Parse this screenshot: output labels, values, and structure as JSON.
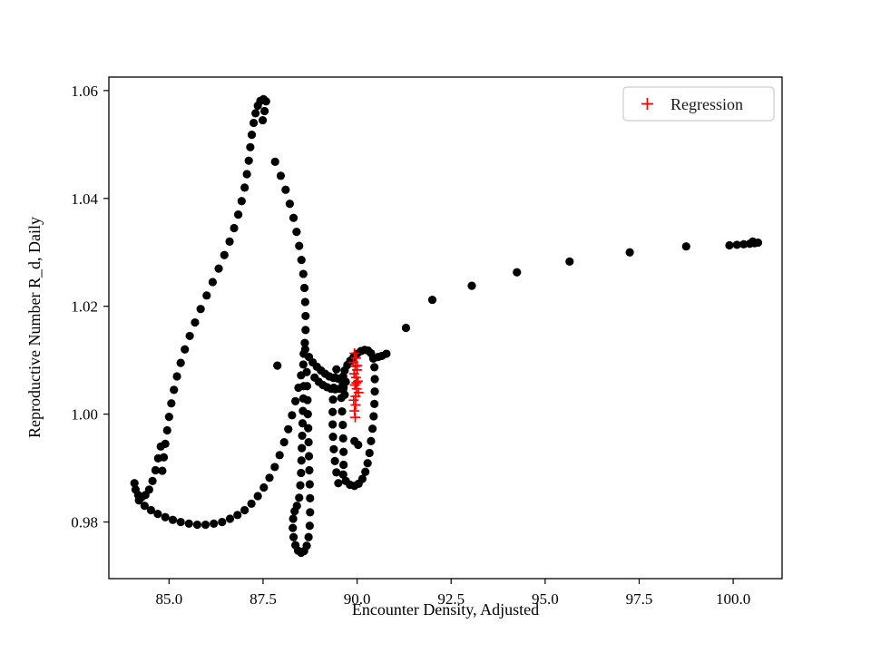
{
  "figure": {
    "background": "#ffffff",
    "frame_color": "#000000"
  },
  "chart_data": {
    "type": "scatter",
    "title": "",
    "xlabel": "Encounter Density, Adjusted",
    "ylabel": "Reproductive Number R_d, Daily",
    "xlim": [
      83.4,
      101.3
    ],
    "ylim": [
      0.9695,
      1.0625
    ],
    "grid": false,
    "xticks": {
      "values": [
        85.0,
        87.5,
        90.0,
        92.5,
        95.0,
        97.5,
        100.0
      ],
      "labels": [
        "85.0",
        "87.5",
        "90.0",
        "92.5",
        "95.0",
        "97.5",
        "100.0"
      ]
    },
    "yticks": {
      "values": [
        0.98,
        1.0,
        1.02,
        1.04,
        1.06
      ],
      "labels": [
        "0.98",
        "1.00",
        "1.02",
        "1.04",
        "1.06"
      ]
    },
    "legend": {
      "label": "Regression",
      "position": "upper right",
      "marker": "plus",
      "marker_color": "#ff0000",
      "box_edge_color": "#cccccc"
    },
    "series": [
      {
        "name": "trajectory",
        "marker": "circle",
        "color": "#000000",
        "size": 4.6,
        "points": [
          [
            84.78,
            0.994
          ],
          [
            84.71,
            0.9918
          ],
          [
            84.64,
            0.9896
          ],
          [
            84.56,
            0.9876
          ],
          [
            84.47,
            0.986
          ],
          [
            84.37,
            0.985
          ],
          [
            84.27,
            0.9846
          ],
          [
            84.18,
            0.985
          ],
          [
            84.11,
            0.986
          ],
          [
            84.08,
            0.9872
          ],
          [
            84.2,
            0.984
          ],
          [
            84.35,
            0.983
          ],
          [
            84.52,
            0.9822
          ],
          [
            84.7,
            0.9815
          ],
          [
            84.9,
            0.9809
          ],
          [
            85.1,
            0.9804
          ],
          [
            85.31,
            0.98
          ],
          [
            85.53,
            0.9797
          ],
          [
            85.75,
            0.9795
          ],
          [
            85.97,
            0.9795
          ],
          [
            86.19,
            0.9797
          ],
          [
            86.41,
            0.98
          ],
          [
            86.62,
            0.9806
          ],
          [
            86.82,
            0.9813
          ],
          [
            87.01,
            0.9822
          ],
          [
            87.19,
            0.9834
          ],
          [
            87.36,
            0.9848
          ],
          [
            87.52,
            0.9864
          ],
          [
            87.67,
            0.9882
          ],
          [
            87.81,
            0.9902
          ],
          [
            87.94,
            0.9924
          ],
          [
            88.06,
            0.9948
          ],
          [
            88.17,
            0.9972
          ],
          [
            88.27,
            0.9998
          ],
          [
            88.36,
            1.0024
          ],
          [
            88.44,
            1.0049
          ],
          [
            88.51,
            1.0072
          ],
          [
            88.57,
            1.0092
          ],
          [
            84.82,
            0.9895
          ],
          [
            84.86,
            0.992
          ],
          [
            84.9,
            0.9945
          ],
          [
            84.95,
            0.997
          ],
          [
            85.0,
            0.9995
          ],
          [
            85.06,
            1.002
          ],
          [
            85.13,
            1.0045
          ],
          [
            85.21,
            1.007
          ],
          [
            85.31,
            1.0095
          ],
          [
            85.42,
            1.012
          ],
          [
            85.55,
            1.0145
          ],
          [
            85.69,
            1.017
          ],
          [
            85.84,
            1.0195
          ],
          [
            86.0,
            1.022
          ],
          [
            86.16,
            1.0245
          ],
          [
            86.32,
            1.027
          ],
          [
            86.47,
            1.0295
          ],
          [
            86.61,
            1.032
          ],
          [
            86.73,
            1.0345
          ],
          [
            86.84,
            1.037
          ],
          [
            86.93,
            1.0395
          ],
          [
            87.01,
            1.042
          ],
          [
            87.07,
            1.0445
          ],
          [
            87.12,
            1.047
          ],
          [
            87.16,
            1.0495
          ],
          [
            87.2,
            1.0518
          ],
          [
            87.25,
            1.054
          ],
          [
            87.3,
            1.0558
          ],
          [
            87.36,
            1.0572
          ],
          [
            87.43,
            1.0581
          ],
          [
            87.51,
            1.0584
          ],
          [
            87.58,
            1.058
          ],
          [
            87.54,
            1.0562
          ],
          [
            87.49,
            1.0545
          ],
          [
            87.82,
            1.0468
          ],
          [
            87.97,
            1.0442
          ],
          [
            88.1,
            1.0416
          ],
          [
            88.21,
            1.039
          ],
          [
            88.31,
            1.0364
          ],
          [
            88.39,
            1.0338
          ],
          [
            88.46,
            1.0312
          ],
          [
            88.52,
            1.0286
          ],
          [
            88.57,
            1.026
          ],
          [
            88.6,
            1.0234
          ],
          [
            88.62,
            1.0208
          ],
          [
            88.63,
            1.0182
          ],
          [
            88.63,
            1.0156
          ],
          [
            88.61,
            1.0132
          ],
          [
            88.58,
            1.0112
          ],
          [
            88.66,
            1.0078
          ],
          [
            88.67,
            1.0052
          ],
          [
            88.68,
            1.0026
          ],
          [
            88.69,
            1.0
          ],
          [
            88.7,
            0.9974
          ],
          [
            88.71,
            0.9948
          ],
          [
            88.72,
            0.9922
          ],
          [
            88.73,
            0.9896
          ],
          [
            88.74,
            0.987
          ],
          [
            88.75,
            0.9844
          ],
          [
            88.75,
            0.9818
          ],
          [
            88.74,
            0.9793
          ],
          [
            88.71,
            0.9772
          ],
          [
            88.66,
            0.9756
          ],
          [
            88.59,
            0.9746
          ],
          [
            88.51,
            0.9743
          ],
          [
            88.43,
            0.9747
          ],
          [
            88.36,
            0.9757
          ],
          [
            88.31,
            0.9772
          ],
          [
            88.29,
            0.9789
          ],
          [
            88.3,
            0.9806
          ],
          [
            88.34,
            0.982
          ],
          [
            88.4,
            0.983
          ],
          [
            88.46,
            0.9845
          ],
          [
            88.49,
            0.9868
          ],
          [
            88.51,
            0.9891
          ],
          [
            88.52,
            0.9914
          ],
          [
            88.53,
            0.9937
          ],
          [
            88.54,
            0.996
          ],
          [
            88.55,
            0.9983
          ],
          [
            88.56,
            1.0006
          ],
          [
            88.57,
            1.0029
          ],
          [
            88.58,
            1.0052
          ],
          [
            89.5,
            0.9872
          ],
          [
            89.45,
            0.9892
          ],
          [
            89.41,
            0.9913
          ],
          [
            89.38,
            0.9935
          ],
          [
            89.36,
            0.9958
          ],
          [
            89.35,
            0.9981
          ],
          [
            89.35,
            1.0004
          ],
          [
            89.36,
            1.0027
          ],
          [
            89.38,
            1.0049
          ],
          [
            89.41,
            1.0068
          ],
          [
            89.45,
            1.0083
          ],
          [
            88.72,
            1.0106
          ],
          [
            88.82,
            1.0096
          ],
          [
            88.93,
            1.0088
          ],
          [
            89.04,
            1.0081
          ],
          [
            89.15,
            1.0075
          ],
          [
            89.26,
            1.007
          ],
          [
            89.37,
            1.0067
          ],
          [
            89.48,
            1.0066
          ],
          [
            89.59,
            1.0066
          ],
          [
            88.87,
            1.0068
          ],
          [
            88.98,
            1.006
          ],
          [
            89.09,
            1.0054
          ],
          [
            89.2,
            1.005
          ],
          [
            89.31,
            1.0047
          ],
          [
            89.42,
            1.0046
          ],
          [
            89.53,
            1.0047
          ],
          [
            89.64,
            1.005
          ],
          [
            89.7,
            1.006
          ],
          [
            89.58,
            1.003
          ],
          [
            89.6,
            1.0005
          ],
          [
            89.62,
            0.998
          ],
          [
            89.63,
            0.9955
          ],
          [
            89.64,
            0.993
          ],
          [
            89.64,
            0.9906
          ],
          [
            89.63,
            0.9888
          ],
          [
            89.7,
            0.9876
          ],
          [
            89.81,
            0.9869
          ],
          [
            89.93,
            0.9867
          ],
          [
            90.04,
            0.9871
          ],
          [
            90.14,
            0.988
          ],
          [
            90.22,
            0.9893
          ],
          [
            90.28,
            0.9909
          ],
          [
            90.33,
            0.9928
          ],
          [
            90.37,
            0.995
          ],
          [
            90.41,
            0.9973
          ],
          [
            90.44,
            0.9996
          ],
          [
            90.46,
            1.0019
          ],
          [
            90.47,
            1.0042
          ],
          [
            90.47,
            1.0065
          ],
          [
            90.46,
            1.0087
          ],
          [
            90.43,
            1.0103
          ],
          [
            90.37,
            1.0113
          ],
          [
            90.29,
            1.0118
          ],
          [
            90.2,
            1.0119
          ],
          [
            90.1,
            1.0117
          ],
          [
            90.0,
            1.0112
          ],
          [
            89.91,
            1.0106
          ],
          [
            89.82,
            1.0099
          ],
          [
            89.74,
            1.0091
          ],
          [
            89.67,
            1.0081
          ],
          [
            89.63,
            1.007
          ],
          [
            89.62,
            1.0058
          ],
          [
            89.63,
            1.0046
          ],
          [
            89.67,
            1.0036
          ],
          [
            87.88,
            1.009
          ],
          [
            89.93,
            0.995
          ],
          [
            90.03,
            0.9943
          ],
          [
            88.62,
            1.012
          ],
          [
            90.56,
            1.0106
          ],
          [
            90.66,
            1.0108
          ],
          [
            90.78,
            1.0112
          ],
          [
            91.3,
            1.016
          ],
          [
            92.0,
            1.0212
          ],
          [
            93.05,
            1.0238
          ],
          [
            94.25,
            1.0263
          ],
          [
            95.65,
            1.0283
          ],
          [
            97.25,
            1.03
          ],
          [
            98.75,
            1.0311
          ],
          [
            99.9,
            1.0313
          ],
          [
            100.1,
            1.0314
          ],
          [
            100.28,
            1.0315
          ],
          [
            100.44,
            1.0316
          ],
          [
            100.57,
            1.0317
          ],
          [
            100.66,
            1.0318
          ],
          [
            100.52,
            1.032
          ]
        ]
      },
      {
        "name": "Regression",
        "marker": "plus",
        "color": "#ff0000",
        "size": 5.5,
        "points": [
          [
            89.93,
            1.0113
          ],
          [
            89.97,
            1.0104
          ],
          [
            89.9,
            1.0096
          ],
          [
            89.95,
            1.0089
          ],
          [
            90.0,
            1.0082
          ],
          [
            89.92,
            1.0075
          ],
          [
            89.97,
            1.0068
          ],
          [
            90.02,
            1.0061
          ],
          [
            89.94,
            1.0054
          ],
          [
            89.99,
            1.0047
          ],
          [
            90.04,
            1.004
          ],
          [
            89.96,
            1.0033
          ],
          [
            89.91,
            1.0026
          ],
          [
            89.96,
            1.0017
          ],
          [
            89.93,
            1.0006
          ],
          [
            89.95,
            0.9994
          ],
          [
            90.0,
            1.009
          ],
          [
            89.98,
            1.0058
          ]
        ]
      }
    ]
  }
}
